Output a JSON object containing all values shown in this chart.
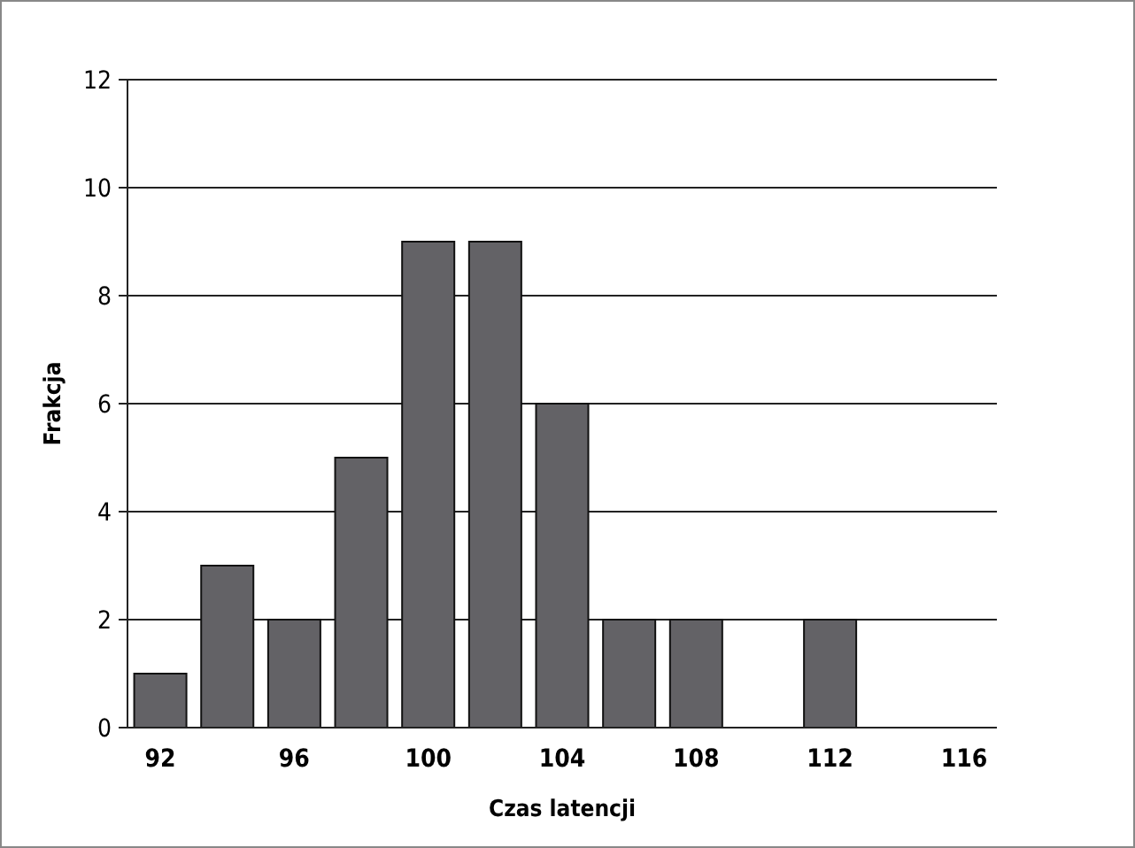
{
  "chart_data": {
    "type": "bar",
    "xlabel": "Czas latencji",
    "ylabel": "Frakcja",
    "categories": [
      "92",
      null,
      "96",
      null,
      "100",
      null,
      "104",
      null,
      "108",
      null,
      "112",
      null,
      "116"
    ],
    "values": [
      1,
      3,
      2,
      5,
      9,
      9,
      6,
      2,
      2,
      0,
      2,
      0,
      0
    ],
    "color": "#636266",
    "ylim": [
      0,
      12
    ],
    "yticks": [
      0,
      2,
      4,
      6,
      8,
      10,
      12
    ],
    "grid": "y"
  }
}
